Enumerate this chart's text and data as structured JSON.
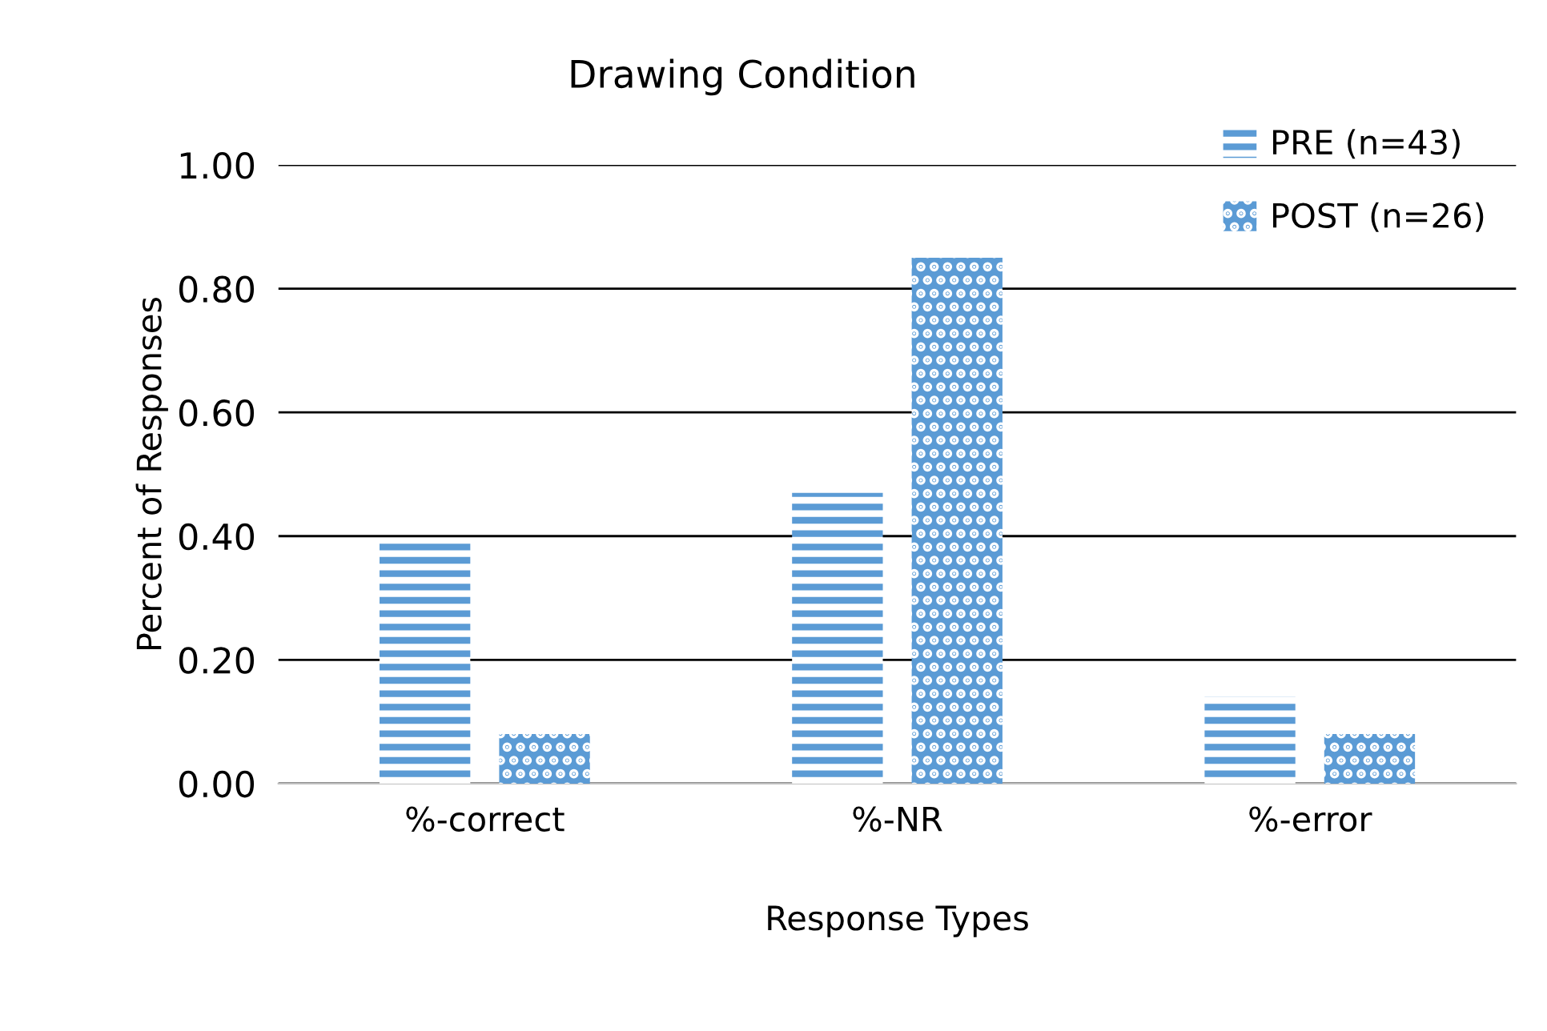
{
  "chart_data": {
    "type": "bar",
    "title": "Drawing Condition",
    "xlabel": "Response Types",
    "ylabel": "Percent of Responses",
    "categories": [
      "%-correct",
      "%-NR",
      "%-error"
    ],
    "series": [
      {
        "name": "PRE (n=43)",
        "color": "#5b9bd5",
        "values": [
          0.39,
          0.47,
          0.14
        ]
      },
      {
        "name": "POST (n=26)",
        "color": "#5b9bd5",
        "values": [
          0.08,
          0.85,
          0.08
        ]
      }
    ],
    "ylim": [
      0,
      1
    ],
    "yticks": [
      {
        "value": 0,
        "label": "0.00"
      },
      {
        "value": 0.2,
        "label": "0.20"
      },
      {
        "value": 0.4,
        "label": "0.40"
      },
      {
        "value": 0.6,
        "label": "0.60"
      },
      {
        "value": 0.8,
        "label": "0.80"
      },
      {
        "value": 1,
        "label": "1.00"
      }
    ],
    "grid": "y",
    "legend": "top right"
  }
}
